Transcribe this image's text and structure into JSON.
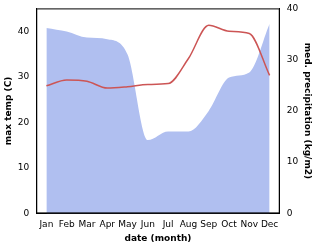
{
  "chart_data": {
    "type": "line",
    "categories": [
      "Jan",
      "Feb",
      "Mar",
      "Apr",
      "May",
      "Jun",
      "Jul",
      "Aug",
      "Sep",
      "Oct",
      "Nov",
      "Dec"
    ],
    "x_label": "date (month)",
    "y_label": "max temp (C)",
    "y2_label": "med. precipitation (kg/m2)",
    "series": [
      {
        "name": "med. precipitation (kg/m2)",
        "type": "area",
        "axis": "y2",
        "color": "#b0bff0",
        "values": [
          36.2,
          35.5,
          34.3,
          34,
          31,
          14.3,
          16,
          16,
          20,
          26.5,
          27.5,
          37
        ]
      },
      {
        "name": "max temp (C)",
        "type": "line",
        "color": "#cc5555",
        "values": [
          28,
          29.3,
          29,
          27.5,
          27.8,
          28.3,
          28.5,
          34,
          41.3,
          40,
          39.5,
          30.3
        ]
      }
    ],
    "ylim": [
      0,
      45
    ],
    "yticks": [
      0,
      10,
      20,
      30,
      40
    ],
    "y2lim": [
      0,
      40
    ],
    "y2ticks": [
      0,
      10,
      20,
      30,
      40
    ],
    "grid": false
  }
}
